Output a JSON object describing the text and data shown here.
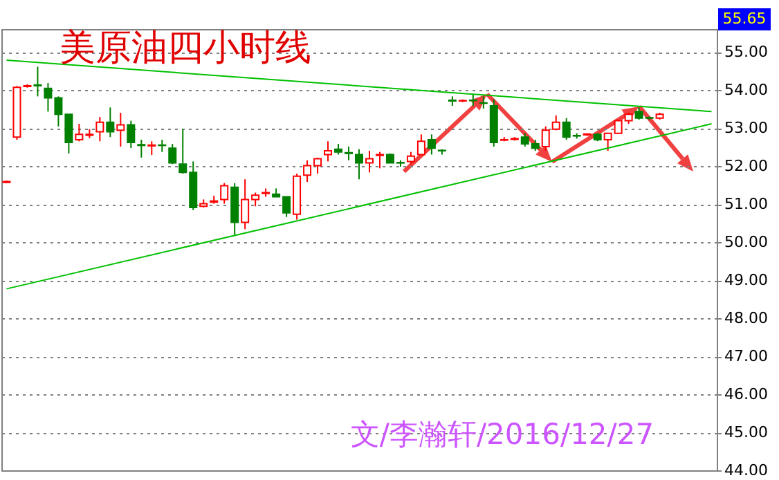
{
  "chart_data": {
    "type": "candlestick",
    "title": "美原油四小时线",
    "annotations": [
      "55.65",
      "文/李瀚轩/2016/12/27"
    ],
    "categories": [
      null,
      null,
      null,
      null,
      null,
      null,
      null,
      null,
      null,
      null,
      null,
      null,
      null,
      null,
      null,
      null,
      null,
      null,
      null,
      null,
      null,
      null,
      null,
      null,
      null,
      null,
      null,
      null,
      null,
      null,
      null,
      null,
      null,
      null,
      null,
      null,
      null,
      null,
      null,
      null,
      null,
      null,
      null,
      null,
      null,
      null,
      null,
      null,
      null,
      null,
      null,
      null,
      null,
      null,
      null,
      null,
      null,
      null,
      null,
      null,
      null,
      null,
      null,
      null,
      null,
      null,
      null,
      null,
      null
    ],
    "ohlc": [
      [
        51.57,
        51.62,
        51.55,
        51.59
      ],
      [
        52.76,
        54.1,
        52.69,
        54.07
      ],
      [
        54.09,
        54.15,
        54.06,
        54.11
      ],
      [
        54.13,
        54.61,
        53.83,
        54.11
      ],
      [
        54.04,
        54.18,
        53.43,
        53.79
      ],
      [
        53.79,
        53.83,
        53.04,
        53.36
      ],
      [
        53.36,
        53.36,
        52.33,
        52.62
      ],
      [
        52.69,
        53.11,
        52.65,
        52.83
      ],
      [
        52.81,
        52.97,
        52.73,
        52.83
      ],
      [
        52.9,
        53.29,
        52.65,
        53.15
      ],
      [
        53.15,
        53.54,
        52.76,
        52.9
      ],
      [
        52.94,
        53.4,
        52.51,
        53.08
      ],
      [
        53.08,
        53.19,
        52.47,
        52.62
      ],
      [
        52.56,
        52.69,
        52.22,
        52.54
      ],
      [
        52.53,
        52.65,
        52.29,
        52.55
      ],
      [
        52.55,
        52.69,
        52.37,
        52.54
      ],
      [
        52.47,
        52.58,
        52.05,
        52.08
      ],
      [
        52.05,
        52.97,
        51.8,
        51.83
      ],
      [
        51.83,
        52.12,
        50.84,
        50.91
      ],
      [
        50.94,
        51.12,
        50.91,
        51.01
      ],
      [
        51.05,
        51.22,
        51.01,
        51.08
      ],
      [
        51.12,
        51.55,
        51.01,
        51.48
      ],
      [
        51.44,
        51.55,
        50.16,
        50.52
      ],
      [
        50.52,
        51.65,
        50.34,
        51.12
      ],
      [
        51.12,
        51.3,
        50.94,
        51.23
      ],
      [
        51.28,
        51.41,
        51.19,
        51.3
      ],
      [
        51.26,
        51.41,
        51.19,
        51.19
      ],
      [
        51.19,
        51.19,
        50.66,
        50.77
      ],
      [
        50.73,
        51.8,
        50.59,
        51.73
      ],
      [
        51.76,
        52.15,
        51.58,
        52.01
      ],
      [
        52.01,
        52.22,
        51.8,
        52.19
      ],
      [
        52.3,
        52.65,
        52.12,
        52.4
      ],
      [
        52.44,
        52.58,
        52.3,
        52.37
      ],
      [
        52.35,
        52.51,
        52.15,
        52.33
      ],
      [
        52.3,
        52.44,
        51.65,
        52.08
      ],
      [
        52.08,
        52.4,
        51.83,
        52.19
      ],
      [
        52.28,
        52.37,
        51.94,
        52.3
      ],
      [
        52.3,
        52.33,
        52.08,
        52.08
      ],
      [
        52.09,
        52.15,
        51.98,
        52.08
      ],
      [
        52.12,
        52.37,
        52.05,
        52.26
      ],
      [
        52.3,
        52.83,
        52.3,
        52.65
      ],
      [
        52.69,
        52.83,
        52.3,
        52.47
      ],
      [
        52.41,
        52.44,
        52.3,
        52.4
      ],
      [
        53.73,
        53.83,
        53.58,
        53.71
      ],
      [
        53.71,
        53.75,
        53.68,
        53.72
      ],
      [
        53.73,
        53.9,
        53.58,
        53.72
      ],
      [
        53.66,
        53.83,
        53.51,
        53.65
      ],
      [
        53.58,
        53.75,
        52.51,
        52.62
      ],
      [
        52.68,
        52.76,
        52.65,
        52.69
      ],
      [
        52.7,
        52.76,
        52.67,
        52.72
      ],
      [
        52.76,
        52.86,
        52.51,
        52.58
      ],
      [
        52.58,
        52.69,
        52.4,
        52.47
      ],
      [
        52.51,
        53.04,
        52.4,
        52.94
      ],
      [
        52.97,
        53.33,
        52.94,
        53.15
      ],
      [
        53.15,
        53.26,
        52.69,
        52.76
      ],
      [
        52.8,
        52.86,
        52.72,
        52.79
      ],
      [
        52.82,
        52.86,
        52.79,
        52.84
      ],
      [
        52.83,
        52.86,
        52.65,
        52.69
      ],
      [
        52.69,
        52.86,
        52.4,
        52.86
      ],
      [
        52.86,
        53.22,
        52.86,
        53.19
      ],
      [
        53.19,
        53.4,
        53.11,
        53.36
      ],
      [
        53.43,
        53.54,
        53.22,
        53.26
      ],
      [
        53.27,
        53.3,
        53.22,
        53.26
      ],
      [
        53.26,
        53.4,
        53.22,
        53.36
      ],
      null,
      null,
      null,
      null,
      null
    ],
    "colors": [
      "#ff0000",
      "#ff0000",
      "#ff0000",
      "#008000",
      "#008000",
      "#008000",
      "#008000",
      "#ff0000",
      "#ff0000",
      "#ff0000",
      "#008000",
      "#ff0000",
      "#008000",
      "#008000",
      "#ff0000",
      "#008000",
      "#008000",
      "#008000",
      "#008000",
      "#ff0000",
      "#ff0000",
      "#ff0000",
      "#008000",
      "#ff0000",
      "#ff0000",
      "#ff0000",
      "#008000",
      "#008000",
      "#ff0000",
      "#ff0000",
      "#ff0000",
      "#ff0000",
      "#008000",
      "#008000",
      "#008000",
      "#ff0000",
      "#ff0000",
      "#008000",
      "#008000",
      "#ff0000",
      "#ff0000",
      "#008000",
      "#008000",
      "#008000",
      "#ff0000",
      "#008000",
      "#008000",
      "#008000",
      "#ff0000",
      "#ff0000",
      "#008000",
      "#008000",
      "#ff0000",
      "#ff0000",
      "#008000",
      "#008000",
      "#ff0000",
      "#008000",
      "#ff0000",
      "#ff0000",
      "#ff0000",
      "#008000",
      "#008000",
      "#ff0000",
      null,
      null,
      null,
      null,
      null
    ],
    "series": [
      {
        "type": "line",
        "color": "#00c000",
        "values": [
          54.78,
          null,
          null,
          null,
          null,
          null,
          null,
          null,
          null,
          null,
          null,
          null,
          null,
          null,
          null,
          null,
          null,
          null,
          null,
          null,
          null,
          null,
          null,
          null,
          null,
          null,
          null,
          null,
          null,
          null,
          null,
          null,
          null,
          null,
          null,
          null,
          null,
          null,
          null,
          null,
          null,
          null,
          null,
          null,
          null,
          null,
          null,
          null,
          null,
          null,
          null,
          null,
          null,
          null,
          null,
          null,
          null,
          null,
          null,
          null,
          null,
          null,
          null,
          null,
          null,
          null,
          null,
          null,
          53.43
        ]
      },
      {
        "type": "line",
        "color": "#00c000",
        "values": [
          48.77,
          null,
          null,
          null,
          null,
          null,
          null,
          null,
          null,
          null,
          null,
          null,
          null,
          null,
          null,
          null,
          null,
          null,
          null,
          null,
          null,
          null,
          null,
          null,
          null,
          null,
          null,
          null,
          null,
          null,
          null,
          null,
          null,
          null,
          null,
          null,
          null,
          null,
          null,
          null,
          null,
          null,
          null,
          null,
          null,
          null,
          null,
          null,
          null,
          null,
          null,
          null,
          null,
          null,
          null,
          null,
          null,
          null,
          null,
          null,
          null,
          null,
          null,
          null,
          null,
          null,
          null,
          null,
          53.11
        ]
      }
    ],
    "ylim": [
      44,
      55.6
    ],
    "yticks": [
      {
        "value": 44,
        "label": "44.00"
      },
      {
        "value": 45,
        "label": "45.00"
      },
      {
        "value": 46,
        "label": "46.00"
      },
      {
        "value": 47,
        "label": "47.00"
      },
      {
        "value": 48,
        "label": "48.00"
      },
      {
        "value": 49,
        "label": "49.00"
      },
      {
        "value": 50,
        "label": "50.00"
      },
      {
        "value": 51,
        "label": "51.00"
      },
      {
        "value": 52,
        "label": "52.00"
      },
      {
        "value": 53,
        "label": "53.00"
      },
      {
        "value": 54,
        "label": "54.00"
      },
      {
        "value": 55,
        "label": "55.00"
      }
    ],
    "grid": "y",
    "tick_labels": "y",
    "line_style": "solid",
    "marker": "none"
  }
}
